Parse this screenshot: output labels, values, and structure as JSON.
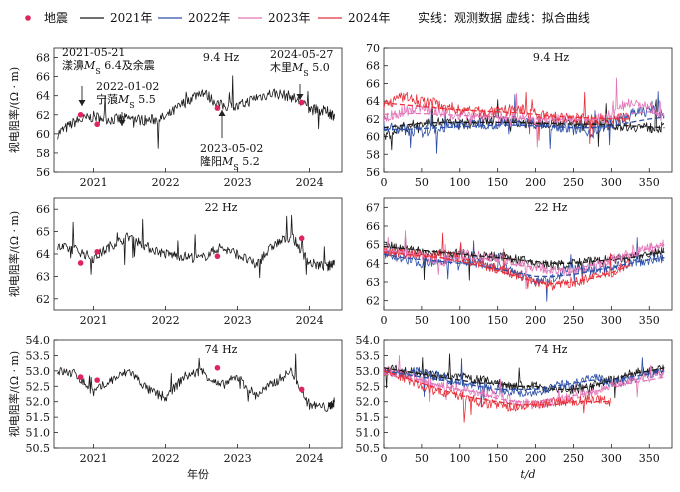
{
  "legend": {
    "items": [
      {
        "label": "地震",
        "color": "#e0245e",
        "kind": "marker"
      },
      {
        "label": "2021年",
        "color": "#1a1a1a",
        "kind": "line"
      },
      {
        "label": "2022年",
        "color": "#2c4fa8",
        "kind": "line"
      },
      {
        "label": "2023年",
        "color": "#e276b8",
        "kind": "line"
      },
      {
        "label": "2024年",
        "color": "#e8303a",
        "kind": "line"
      }
    ],
    "note": "实线：观测数据  虚线：拟合曲线"
  },
  "chart_data": [
    {
      "type": "line",
      "title": "9.4 Hz",
      "ylabel": "视电阻率/(Ω · m)",
      "x_ticks": [
        "2021",
        "2022",
        "2023",
        "2024"
      ],
      "xlim": [
        2020.45,
        2024.45
      ],
      "ylim": [
        56,
        69
      ],
      "y_ticks": [
        56,
        58,
        60,
        62,
        64,
        66,
        68
      ],
      "x": [
        2020.5,
        2020.75,
        2021.0,
        2021.25,
        2021.5,
        2021.75,
        2022.0,
        2022.25,
        2022.5,
        2022.75,
        2023.0,
        2023.25,
        2023.5,
        2023.75,
        2024.0,
        2024.25,
        2024.35
      ],
      "series": [
        {
          "color": "#1a1a1a",
          "values": [
            60.0,
            61.3,
            61.8,
            61.5,
            61.6,
            61.4,
            61.7,
            63.2,
            64.5,
            63.0,
            62.8,
            63.8,
            64.3,
            63.9,
            62.6,
            62.3,
            61.9
          ]
        }
      ],
      "earthquakes": [
        {
          "x": 2020.82,
          "y": 62.0
        },
        {
          "x": 2021.05,
          "y": 61.0
        },
        {
          "x": 2022.72,
          "y": 62.7
        },
        {
          "x": 2023.89,
          "y": 63.3
        }
      ],
      "annotations": [
        {
          "lines": [
            "2021-05-21",
            "漾濞M_S 6.4及余震"
          ],
          "arrow_x": 2020.82
        },
        {
          "lines": [
            "2022-01-02",
            "宁蒗M_S 5.5"
          ],
          "arrow_x": 2021.05
        },
        {
          "lines": [
            "2023-05-02",
            "隆阳M_S 5.2"
          ],
          "arrow_x": 2022.72
        },
        {
          "lines": [
            "2024-05-27",
            "木里M_S 5.0"
          ],
          "arrow_x": 2023.89
        }
      ]
    },
    {
      "type": "line",
      "title": "22 Hz",
      "ylabel": "视电阻率/(Ω · m)",
      "x_ticks": [
        "2021",
        "2022",
        "2023",
        "2024"
      ],
      "xlim": [
        2020.45,
        2024.45
      ],
      "ylim": [
        61.5,
        66.5
      ],
      "y_ticks": [
        62,
        63,
        64,
        65,
        66
      ],
      "x": [
        2020.5,
        2020.75,
        2021.0,
        2021.25,
        2021.5,
        2021.75,
        2022.0,
        2022.25,
        2022.5,
        2022.75,
        2023.0,
        2023.25,
        2023.5,
        2023.75,
        2024.0,
        2024.25,
        2024.35
      ],
      "series": [
        {
          "color": "#1a1a1a",
          "values": [
            64.3,
            64.2,
            63.8,
            64.4,
            64.8,
            64.3,
            64.0,
            63.9,
            63.8,
            64.3,
            64.0,
            63.5,
            64.4,
            64.8,
            63.6,
            63.4,
            63.7
          ]
        }
      ],
      "earthquakes": [
        {
          "x": 2020.82,
          "y": 63.6
        },
        {
          "x": 2021.05,
          "y": 64.1
        },
        {
          "x": 2022.72,
          "y": 63.9
        },
        {
          "x": 2023.89,
          "y": 64.7
        }
      ]
    },
    {
      "type": "line",
      "title": "74 Hz",
      "ylabel": "视电阻率/(Ω · m)",
      "xlabel": "年份",
      "x_ticks": [
        "2021",
        "2022",
        "2023",
        "2024"
      ],
      "xlim": [
        2020.45,
        2024.45
      ],
      "ylim": [
        50.5,
        54
      ],
      "y_ticks": [
        50.5,
        51.0,
        51.5,
        52.0,
        52.5,
        53.0,
        53.5,
        54.0
      ],
      "x": [
        2020.5,
        2020.75,
        2021.0,
        2021.25,
        2021.5,
        2021.75,
        2022.0,
        2022.25,
        2022.5,
        2022.75,
        2023.0,
        2023.25,
        2023.5,
        2023.75,
        2024.0,
        2024.25,
        2024.35
      ],
      "series": [
        {
          "color": "#1a1a1a",
          "values": [
            53.0,
            52.9,
            52.3,
            52.7,
            53.0,
            52.4,
            52.1,
            52.8,
            53.0,
            52.5,
            52.8,
            52.2,
            52.6,
            53.0,
            51.9,
            51.8,
            52.0
          ]
        }
      ],
      "earthquakes": [
        {
          "x": 2020.82,
          "y": 52.8
        },
        {
          "x": 2021.05,
          "y": 52.7
        },
        {
          "x": 2022.72,
          "y": 53.1
        },
        {
          "x": 2023.89,
          "y": 52.4
        }
      ]
    },
    {
      "type": "line",
      "title": "9.4 Hz",
      "xlim": [
        0,
        380
      ],
      "ylim": [
        56,
        70
      ],
      "y_ticks": [
        56,
        58,
        60,
        62,
        64,
        66,
        68,
        70
      ],
      "x_ticks": [
        0,
        50,
        100,
        150,
        200,
        250,
        300,
        350
      ],
      "x": [
        0,
        25,
        50,
        75,
        100,
        125,
        150,
        175,
        200,
        225,
        250,
        275,
        300,
        325,
        350,
        370
      ],
      "series": [
        {
          "color": "#1a1a1a",
          "values": [
            60.0,
            61.0,
            61.5,
            61.6,
            61.4,
            61.6,
            61.8,
            61.7,
            61.5,
            61.6,
            61.4,
            61.5,
            61.3,
            61.2,
            61.0,
            61.0
          ]
        },
        {
          "color": "#2c4fa8",
          "values": [
            61.0,
            60.8,
            60.5,
            61.0,
            61.3,
            61.5,
            61.4,
            61.7,
            61.5,
            61.3,
            60.8,
            60.5,
            61.5,
            62.5,
            63.0,
            62.5
          ]
        },
        {
          "color": "#e276b8",
          "values": [
            62.0,
            62.8,
            63.4,
            62.6,
            62.5,
            62.4,
            62.3,
            62.2,
            62.0,
            62.0,
            61.8,
            61.8,
            62.5,
            64.0,
            63.5,
            62.0
          ]
        },
        {
          "color": "#e8303a",
          "values": [
            63.5,
            64.5,
            64.0,
            63.6,
            63.0,
            62.8,
            62.7,
            63.2,
            62.5,
            62.2,
            62.0,
            62.0,
            61.8,
            62.3,
            null,
            null
          ]
        }
      ],
      "fits": [
        {
          "color": "#1a1a1a",
          "values": [
            61.0,
            61.3,
            61.5,
            61.6,
            61.6,
            61.6,
            61.6,
            61.6,
            61.5,
            61.5,
            61.4,
            61.4,
            61.3,
            61.2,
            61.1,
            61.0
          ]
        },
        {
          "color": "#2c4fa8",
          "values": [
            60.8,
            60.8,
            60.9,
            61.0,
            61.1,
            61.2,
            61.3,
            61.3,
            61.2,
            61.1,
            61.0,
            61.0,
            61.2,
            61.6,
            62.0,
            62.2
          ]
        },
        {
          "color": "#e276b8",
          "values": [
            62.5,
            62.6,
            62.6,
            62.5,
            62.4,
            62.3,
            62.2,
            62.1,
            62.0,
            62.0,
            61.9,
            61.9,
            62.1,
            62.6,
            62.8,
            62.4
          ]
        },
        {
          "color": "#e8303a",
          "values": [
            63.8,
            63.6,
            63.4,
            63.2,
            63.0,
            62.9,
            62.8,
            62.7,
            62.5,
            62.3,
            62.2,
            62.1,
            62.0,
            62.0,
            null,
            null
          ]
        }
      ]
    },
    {
      "type": "line",
      "title": "22 Hz",
      "xlim": [
        0,
        380
      ],
      "ylim": [
        61.5,
        67.5
      ],
      "y_ticks": [
        62,
        63,
        64,
        65,
        66,
        67
      ],
      "x_ticks": [
        0,
        50,
        100,
        150,
        200,
        250,
        300,
        350
      ],
      "x": [
        0,
        25,
        50,
        75,
        100,
        125,
        150,
        175,
        200,
        225,
        250,
        275,
        300,
        325,
        350,
        370
      ],
      "series": [
        {
          "color": "#1a1a1a",
          "values": [
            65.0,
            64.8,
            64.6,
            64.5,
            64.5,
            64.4,
            64.4,
            64.2,
            64.0,
            63.9,
            64.0,
            64.1,
            64.2,
            64.3,
            64.5,
            64.6
          ]
        },
        {
          "color": "#2c4fa8",
          "values": [
            64.5,
            64.3,
            64.0,
            64.2,
            64.1,
            64.0,
            63.8,
            63.5,
            63.0,
            63.2,
            63.8,
            63.6,
            63.8,
            64.0,
            64.2,
            64.3
          ]
        },
        {
          "color": "#e276b8",
          "values": [
            64.8,
            64.6,
            64.4,
            64.0,
            64.5,
            64.4,
            64.3,
            64.0,
            63.8,
            63.6,
            63.5,
            63.8,
            64.2,
            64.5,
            64.8,
            65.0
          ]
        },
        {
          "color": "#e8303a",
          "values": [
            64.7,
            64.5,
            64.4,
            64.5,
            64.3,
            64.0,
            63.7,
            63.4,
            63.0,
            62.8,
            63.0,
            63.2,
            63.5,
            64.0,
            null,
            null
          ]
        }
      ],
      "fits": [
        {
          "color": "#1a1a1a",
          "values": [
            64.9,
            64.8,
            64.7,
            64.6,
            64.5,
            64.4,
            64.3,
            64.2,
            64.1,
            64.0,
            64.0,
            64.1,
            64.2,
            64.3,
            64.5,
            64.6
          ]
        },
        {
          "color": "#2c4fa8",
          "values": [
            64.5,
            64.3,
            64.2,
            64.1,
            64.0,
            63.9,
            63.7,
            63.5,
            63.3,
            63.3,
            63.4,
            63.6,
            63.8,
            64.0,
            64.2,
            64.3
          ]
        },
        {
          "color": "#e276b8",
          "values": [
            64.7,
            64.6,
            64.4,
            64.3,
            64.3,
            64.2,
            64.1,
            63.9,
            63.8,
            63.7,
            63.7,
            63.9,
            64.2,
            64.5,
            64.8,
            65.0
          ]
        },
        {
          "color": "#e8303a",
          "values": [
            64.6,
            64.5,
            64.4,
            64.3,
            64.1,
            63.9,
            63.6,
            63.3,
            63.0,
            62.9,
            63.0,
            63.2,
            63.5,
            63.9,
            null,
            null
          ]
        }
      ]
    },
    {
      "type": "line",
      "title": "74 Hz",
      "xlabel": "t/d",
      "xlim": [
        0,
        380
      ],
      "ylim": [
        50.5,
        54
      ],
      "y_ticks": [
        50.5,
        51.0,
        51.5,
        52.0,
        52.5,
        53.0,
        53.5,
        54.0
      ],
      "x_ticks": [
        0,
        50,
        100,
        150,
        200,
        250,
        300,
        350
      ],
      "x": [
        0,
        25,
        50,
        75,
        100,
        125,
        150,
        175,
        200,
        225,
        250,
        275,
        300,
        325,
        350,
        370
      ],
      "series": [
        {
          "color": "#1a1a1a",
          "values": [
            53.1,
            53.0,
            52.9,
            52.8,
            52.8,
            52.7,
            52.6,
            52.5,
            52.5,
            52.4,
            52.4,
            52.5,
            52.7,
            52.9,
            53.0,
            53.1
          ]
        },
        {
          "color": "#2c4fa8",
          "values": [
            53.0,
            52.9,
            53.0,
            52.8,
            52.6,
            52.5,
            52.4,
            52.3,
            52.3,
            52.5,
            52.6,
            52.8,
            52.6,
            52.7,
            52.9,
            53.0
          ]
        },
        {
          "color": "#e276b8",
          "values": [
            53.0,
            52.9,
            52.7,
            52.5,
            52.4,
            52.3,
            52.2,
            52.0,
            51.9,
            52.0,
            52.2,
            52.3,
            52.5,
            52.7,
            52.8,
            52.9
          ]
        },
        {
          "color": "#e8303a",
          "values": [
            53.0,
            52.8,
            52.5,
            52.3,
            52.2,
            52.0,
            51.9,
            51.8,
            51.9,
            52.0,
            52.0,
            52.1,
            52.0,
            null,
            null,
            null
          ]
        }
      ],
      "fits": [
        {
          "color": "#1a1a1a",
          "values": [
            53.1,
            53.0,
            52.9,
            52.8,
            52.7,
            52.6,
            52.6,
            52.5,
            52.5,
            52.4,
            52.4,
            52.5,
            52.7,
            52.9,
            53.0,
            53.1
          ]
        },
        {
          "color": "#2c4fa8",
          "values": [
            53.0,
            52.9,
            52.8,
            52.7,
            52.6,
            52.5,
            52.4,
            52.4,
            52.4,
            52.5,
            52.6,
            52.7,
            52.7,
            52.8,
            52.9,
            53.0
          ]
        },
        {
          "color": "#e276b8",
          "values": [
            52.9,
            52.8,
            52.7,
            52.5,
            52.4,
            52.3,
            52.1,
            52.0,
            52.0,
            52.1,
            52.2,
            52.3,
            52.5,
            52.6,
            52.7,
            52.8
          ]
        },
        {
          "color": "#e8303a",
          "values": [
            53.0,
            52.8,
            52.6,
            52.4,
            52.2,
            52.1,
            52.0,
            51.9,
            51.9,
            51.9,
            52.0,
            52.0,
            52.0,
            null,
            null,
            null
          ]
        }
      ]
    }
  ]
}
